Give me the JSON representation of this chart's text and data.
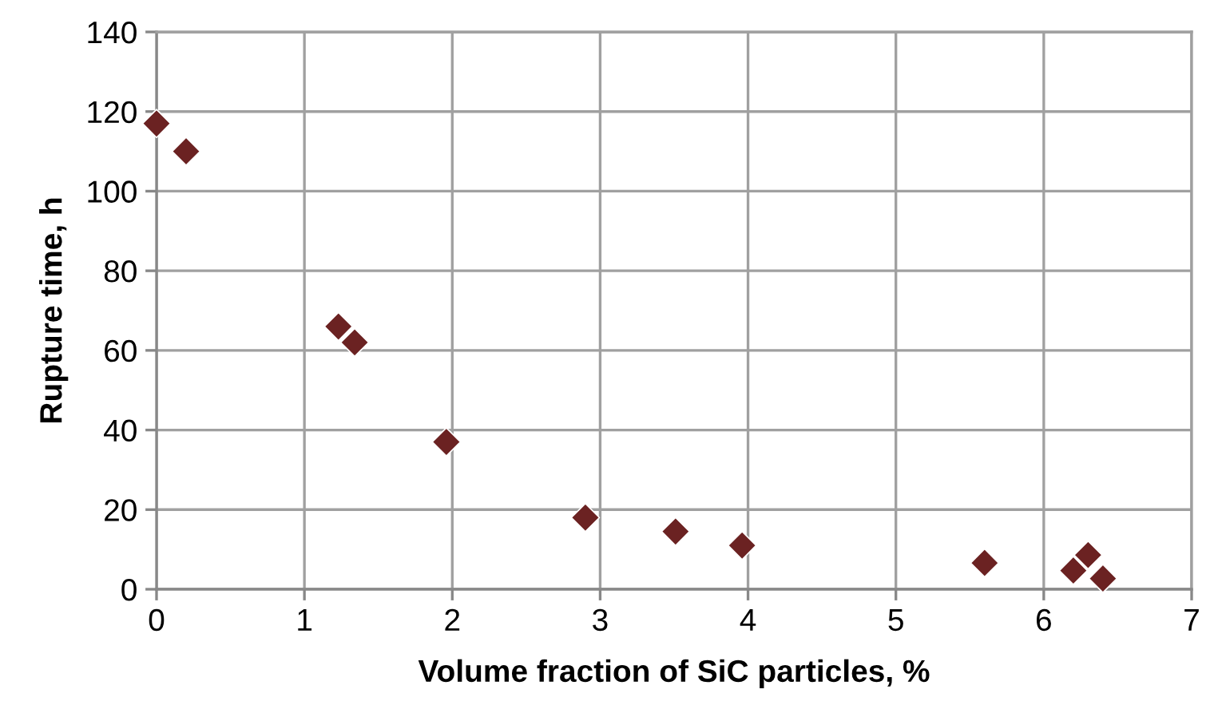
{
  "chart_data": {
    "type": "scatter",
    "xlabel": "Volume fraction of SiC particles, %",
    "ylabel": "Rupture time, h",
    "x": [
      0,
      0.2,
      1.23,
      1.34,
      1.96,
      2.9,
      3.51,
      3.96,
      5.6,
      6.2,
      6.3,
      6.4
    ],
    "series": [
      {
        "color": "#6b2222",
        "values": [
          117,
          110,
          66,
          62,
          37,
          18,
          14.5,
          11,
          6.6,
          4.7,
          8.6,
          2.7
        ]
      }
    ],
    "xlim": [
      0,
      7
    ],
    "xticks": [
      0,
      1,
      2,
      3,
      4,
      5,
      6,
      7
    ],
    "ylim": [
      0,
      140
    ],
    "yticks": [
      0,
      20,
      40,
      60,
      80,
      100,
      120,
      140
    ],
    "grid": true,
    "marker": "diamond"
  }
}
